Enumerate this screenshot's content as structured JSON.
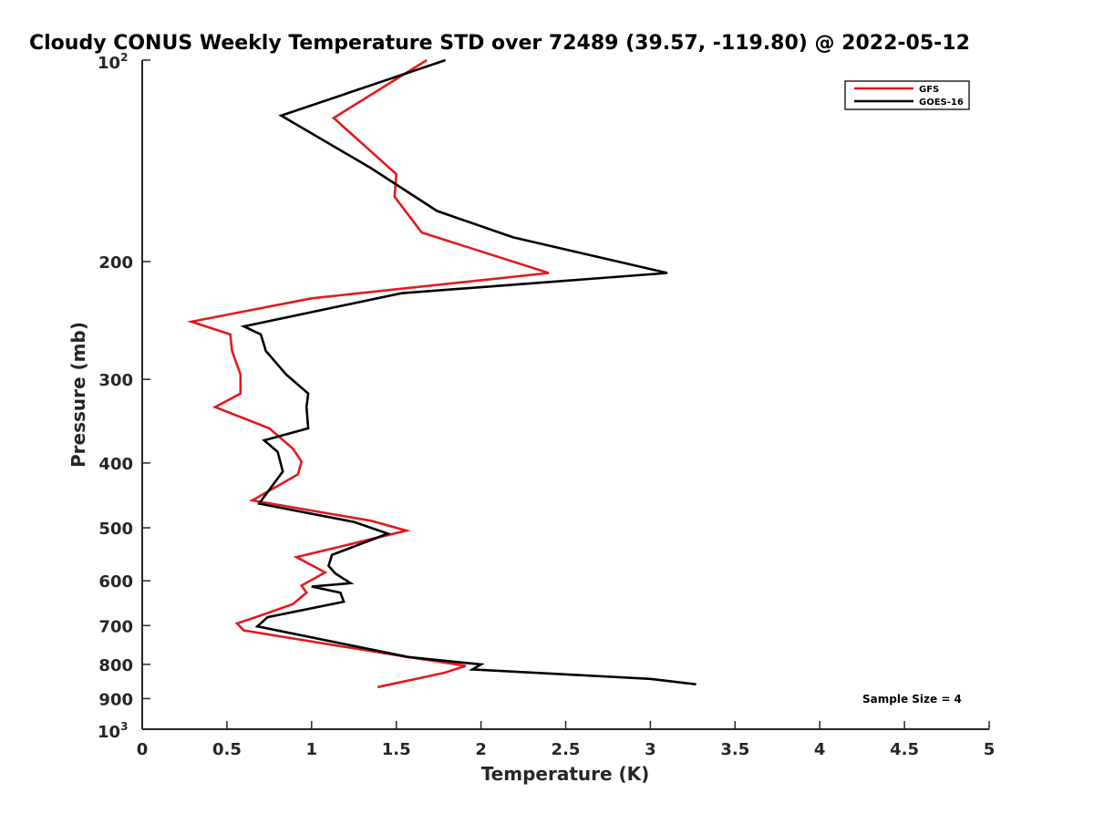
{
  "chart_data": {
    "type": "line",
    "title": "Cloudy CONUS Weekly Temperature STD over 72489 (39.57, -119.80) @ 2022-05-12",
    "xlabel": "Temperature (K)",
    "ylabel": "Pressure (mb)",
    "xlim": [
      0,
      5
    ],
    "ylim": [
      100,
      1000
    ],
    "y_scale": "log",
    "y_reversed": true,
    "grid": false,
    "legend_position": "top-right",
    "x_ticks": [
      0,
      0.5,
      1,
      1.5,
      2,
      2.5,
      3,
      3.5,
      4,
      4.5,
      5
    ],
    "x_tick_labels": [
      "0",
      "0.5",
      "1",
      "1.5",
      "2",
      "2.5",
      "3",
      "3.5",
      "4",
      "4.5",
      "5"
    ],
    "y_ticks": [
      {
        "value": 100,
        "base": "10",
        "exp": "2"
      },
      {
        "value": 200,
        "label": "200"
      },
      {
        "value": 300,
        "label": "300"
      },
      {
        "value": 400,
        "label": "400"
      },
      {
        "value": 500,
        "label": "500"
      },
      {
        "value": 600,
        "label": "600"
      },
      {
        "value": 700,
        "label": "700"
      },
      {
        "value": 800,
        "label": "800"
      },
      {
        "value": 900,
        "label": "900"
      },
      {
        "value": 1000,
        "base": "10",
        "exp": "3"
      }
    ],
    "series": [
      {
        "name": "GFS",
        "color": "#e31a1c",
        "x": [
          1.68,
          1.13,
          1.5,
          1.49,
          1.65,
          2.4,
          1.0,
          0.29,
          0.52,
          0.53,
          0.58,
          0.58,
          0.43,
          0.75,
          0.89,
          0.94,
          0.92,
          0.65,
          1.35,
          1.56,
          0.91,
          1.08,
          0.94,
          0.97,
          0.89,
          0.67,
          0.56,
          0.6,
          1.54,
          1.91,
          1.78,
          1.39
        ],
        "y": [
          100,
          122,
          148,
          160,
          181,
          208,
          227,
          246,
          257,
          272,
          295,
          315,
          330,
          355,
          381,
          398,
          416,
          455,
          488,
          505,
          553,
          583,
          610,
          625,
          650,
          680,
          695,
          712,
          778,
          804,
          824,
          865
        ]
      },
      {
        "name": "GOES-16",
        "color": "#000000",
        "x": [
          1.79,
          0.82,
          1.35,
          1.74,
          2.19,
          3.1,
          1.53,
          0.6,
          0.7,
          0.73,
          0.85,
          0.98,
          0.97,
          0.98,
          0.72,
          0.8,
          0.83,
          0.69,
          1.25,
          1.45,
          1.12,
          1.1,
          1.14,
          1.23,
          1.0,
          1.17,
          1.19,
          0.74,
          0.68,
          1.57,
          2.0,
          1.95,
          3.0,
          3.27
        ],
        "y": [
          100,
          121,
          145,
          168,
          184,
          208,
          223,
          250,
          257,
          272,
          295,
          315,
          330,
          355,
          370,
          385,
          412,
          460,
          490,
          510,
          549,
          570,
          585,
          605,
          612,
          625,
          645,
          680,
          702,
          780,
          800,
          814,
          841,
          857
        ]
      }
    ],
    "annotations": [
      {
        "text": "Sample Size = 4",
        "position": "bottom-right"
      }
    ]
  }
}
